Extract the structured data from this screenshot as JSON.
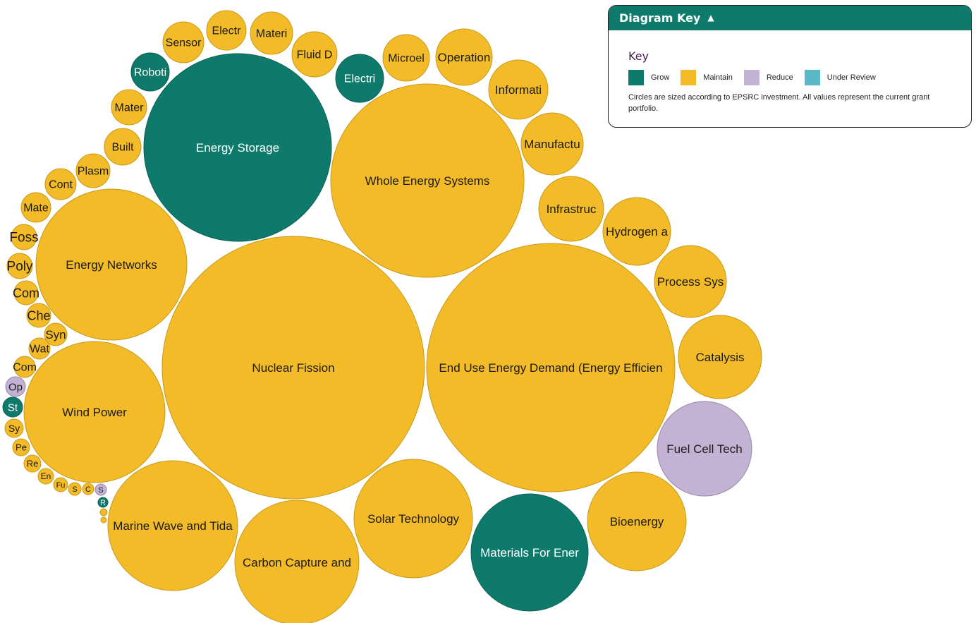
{
  "colors": {
    "grow": "#0d7a6c",
    "maintain": "#f3bb27",
    "reduce": "#c3b2d4",
    "under_review": "#5bb8c8"
  },
  "key": {
    "header": "Diagram Key",
    "header_icon": "chevron-up-icon",
    "title": "Key",
    "legend": [
      {
        "label": "Grow",
        "color": "#0d7a6c"
      },
      {
        "label": "Maintain",
        "color": "#f3bb27"
      },
      {
        "label": "Reduce",
        "color": "#c3b2d4"
      },
      {
        "label": "Under Review",
        "color": "#5bb8c8"
      }
    ],
    "note": "Circles are sized according to EPSRC investment. All values represent the current grant portfolio."
  },
  "bubbles": [
    {
      "label": "Nuclear Fission",
      "status": "maintain"
    },
    {
      "label": "End Use Energy Demand (Energy Efficien",
      "status": "maintain"
    },
    {
      "label": "Energy Storage",
      "status": "grow"
    },
    {
      "label": "Whole Energy Systems",
      "status": "maintain"
    },
    {
      "label": "Energy Networks",
      "status": "maintain"
    },
    {
      "label": "Wind Power",
      "status": "maintain"
    },
    {
      "label": "Marine Wave and Tida",
      "status": "maintain"
    },
    {
      "label": "Carbon Capture and",
      "status": "maintain"
    },
    {
      "label": "Solar Technology",
      "status": "maintain"
    },
    {
      "label": "Materials For Ener",
      "status": "grow"
    },
    {
      "label": "Bioenergy",
      "status": "maintain"
    },
    {
      "label": "Fuel Cell Tech",
      "status": "reduce"
    },
    {
      "label": "Catalysis",
      "status": "maintain"
    },
    {
      "label": "Process Sys",
      "status": "maintain"
    },
    {
      "label": "Hydrogen a",
      "status": "maintain"
    },
    {
      "label": "Infrastruc",
      "status": "maintain"
    },
    {
      "label": "Manufactu",
      "status": "maintain"
    },
    {
      "label": "Informati",
      "status": "maintain"
    },
    {
      "label": "Operation",
      "status": "maintain"
    },
    {
      "label": "Microel",
      "status": "maintain"
    },
    {
      "label": "Electri",
      "status": "grow"
    },
    {
      "label": "Fluid D",
      "status": "maintain"
    },
    {
      "label": "Materi",
      "status": "maintain"
    },
    {
      "label": "Electr",
      "status": "maintain"
    },
    {
      "label": "Sensor",
      "status": "maintain"
    },
    {
      "label": "Roboti",
      "status": "grow"
    },
    {
      "label": "Mater",
      "status": "maintain"
    },
    {
      "label": "Built",
      "status": "maintain"
    },
    {
      "label": "Plasm",
      "status": "maintain"
    },
    {
      "label": "Cont",
      "status": "maintain"
    },
    {
      "label": "Mate",
      "status": "maintain"
    },
    {
      "label": "Foss",
      "status": "maintain"
    },
    {
      "label": "Poly",
      "status": "maintain"
    },
    {
      "label": "Com",
      "status": "maintain"
    },
    {
      "label": "Che",
      "status": "maintain"
    },
    {
      "label": "Syn",
      "status": "maintain"
    },
    {
      "label": "Wat",
      "status": "maintain"
    },
    {
      "label": "Com",
      "status": "maintain"
    },
    {
      "label": "Op",
      "status": "reduce"
    },
    {
      "label": "St",
      "status": "grow"
    },
    {
      "label": "Sy",
      "status": "maintain"
    },
    {
      "label": "Pe",
      "status": "maintain"
    },
    {
      "label": "Re",
      "status": "maintain"
    },
    {
      "label": "En",
      "status": "maintain"
    },
    {
      "label": "Fu",
      "status": "maintain"
    },
    {
      "label": "S",
      "status": "maintain"
    },
    {
      "label": "C",
      "status": "maintain"
    },
    {
      "label": "S",
      "status": "reduce"
    },
    {
      "label": "R",
      "status": "grow"
    },
    {
      "label": "",
      "status": "maintain"
    },
    {
      "label": "",
      "status": "maintain"
    }
  ]
}
